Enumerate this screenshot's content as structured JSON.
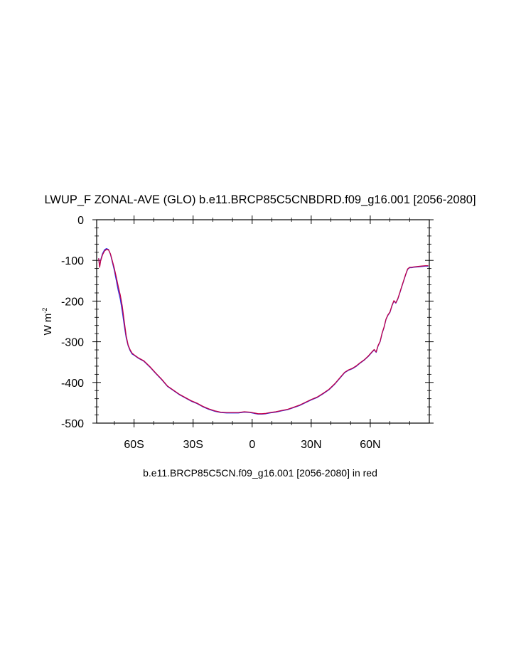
{
  "chart_data": {
    "type": "line",
    "title": "LWUP_F ZONAL-AVE (GLO) b.e11.BRCP85C5CNBDRD.f09_g16.001 [2056-2080]",
    "subtitle": "b.e11.BRCP85C5CN.f09_g16.001 [2056-2080] in red",
    "ylabel_base": "W m",
    "ylabel_sup": "-2",
    "xlim": [
      -79,
      90
    ],
    "ylim": [
      -500,
      0
    ],
    "xticks": [
      {
        "value": -60,
        "label": "60S"
      },
      {
        "value": -30,
        "label": "30S"
      },
      {
        "value": 0,
        "label": "0"
      },
      {
        "value": 30,
        "label": "30N"
      },
      {
        "value": 60,
        "label": "60N"
      }
    ],
    "yticks": [
      {
        "value": 0,
        "label": "0"
      },
      {
        "value": -100,
        "label": "-100"
      },
      {
        "value": -200,
        "label": "-200"
      },
      {
        "value": -300,
        "label": "-300"
      },
      {
        "value": -400,
        "label": "-400"
      },
      {
        "value": -500,
        "label": "-500"
      }
    ],
    "grid": false,
    "colors": {
      "series_blue": "#3030e0",
      "series_red": "#c0004a"
    },
    "series": [
      {
        "color": "blue",
        "x": [
          -78,
          -77.5,
          -77,
          -76,
          -75,
          -74,
          -73,
          -72,
          -71,
          -70,
          -69,
          -68,
          -67,
          -66,
          -65,
          -64,
          -63,
          -62,
          -61,
          -60,
          -58,
          -55,
          -52,
          -49,
          -46,
          -43,
          -40,
          -37,
          -34,
          -31,
          -28,
          -25,
          -22,
          -19,
          -16,
          -13,
          -10,
          -7,
          -4,
          -1,
          0,
          1,
          3,
          5,
          7,
          9,
          12,
          15,
          18,
          21,
          24,
          27,
          30,
          33,
          36,
          39,
          42,
          45,
          47,
          49,
          51,
          53,
          55,
          57,
          59,
          61,
          62,
          63,
          64,
          65,
          66,
          67,
          68,
          69,
          70,
          71,
          72,
          73,
          74,
          75,
          76,
          77,
          78,
          79,
          80,
          81,
          82,
          84,
          86,
          88,
          89.5
        ],
        "y": [
          -95,
          -115,
          -100,
          -83,
          -74,
          -71,
          -73,
          -85,
          -105,
          -125,
          -150,
          -175,
          -195,
          -225,
          -260,
          -290,
          -310,
          -322,
          -330,
          -333,
          -340,
          -348,
          -362,
          -378,
          -393,
          -410,
          -420,
          -430,
          -438,
          -446,
          -452,
          -460,
          -466,
          -471,
          -474,
          -475,
          -475,
          -475,
          -473,
          -474,
          -475,
          -476,
          -478,
          -478,
          -477,
          -475,
          -473,
          -470,
          -467,
          -462,
          -457,
          -450,
          -443,
          -437,
          -428,
          -418,
          -404,
          -387,
          -376,
          -370,
          -366,
          -360,
          -352,
          -345,
          -336,
          -325,
          -320,
          -326,
          -310,
          -300,
          -280,
          -265,
          -245,
          -235,
          -228,
          -212,
          -200,
          -205,
          -195,
          -180,
          -165,
          -150,
          -135,
          -122,
          -118,
          -118,
          -117,
          -116,
          -115,
          -114,
          -114
        ]
      },
      {
        "color": "red",
        "x": [
          -78,
          -77.5,
          -77,
          -76,
          -75,
          -74,
          -73,
          -72,
          -71,
          -70,
          -69,
          -68,
          -67,
          -66,
          -65,
          -64,
          -63,
          -62,
          -61,
          -60,
          -58,
          -55,
          -52,
          -49,
          -46,
          -43,
          -40,
          -37,
          -34,
          -31,
          -28,
          -25,
          -22,
          -19,
          -16,
          -13,
          -10,
          -7,
          -4,
          -1,
          0,
          1,
          3,
          5,
          7,
          9,
          12,
          15,
          18,
          21,
          24,
          27,
          30,
          33,
          36,
          39,
          42,
          45,
          47,
          49,
          51,
          53,
          55,
          57,
          59,
          61,
          62,
          63,
          64,
          65,
          66,
          67,
          68,
          69,
          70,
          71,
          72,
          73,
          74,
          75,
          76,
          77,
          78,
          79,
          80,
          81,
          82,
          84,
          86,
          88,
          89.5
        ],
        "y": [
          -95,
          -117,
          -102,
          -86,
          -77,
          -73,
          -74,
          -84,
          -102,
          -120,
          -142,
          -165,
          -185,
          -212,
          -250,
          -285,
          -308,
          -320,
          -328,
          -332,
          -339,
          -347,
          -361,
          -377,
          -392,
          -409,
          -419,
          -429,
          -437,
          -445,
          -451,
          -459,
          -465,
          -470,
          -473,
          -474,
          -474,
          -474,
          -472,
          -473,
          -474,
          -475,
          -477,
          -477,
          -476,
          -474,
          -472,
          -469,
          -466,
          -461,
          -456,
          -449,
          -442,
          -436,
          -427,
          -417,
          -403,
          -386,
          -375,
          -369,
          -365,
          -359,
          -351,
          -344,
          -335,
          -324,
          -319,
          -325,
          -309,
          -299,
          -279,
          -264,
          -244,
          -234,
          -227,
          -211,
          -199,
          -204,
          -194,
          -179,
          -164,
          -149,
          -134,
          -121,
          -117,
          -117,
          -116,
          -115,
          -114,
          -113,
          -113
        ]
      }
    ]
  }
}
